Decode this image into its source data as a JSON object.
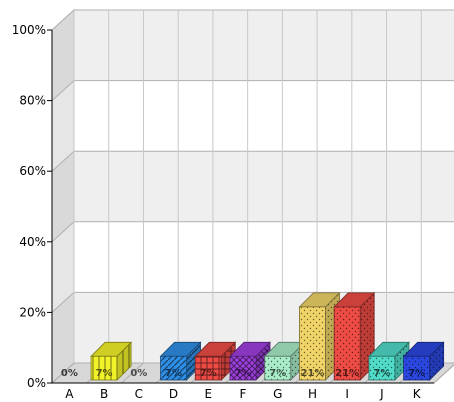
{
  "chart_data": {
    "type": "bar",
    "categories": [
      "A",
      "B",
      "C",
      "D",
      "E",
      "F",
      "G",
      "H",
      "I",
      "J",
      "K"
    ],
    "values": [
      0,
      7,
      0,
      7,
      7,
      7,
      7,
      21,
      21,
      7,
      7
    ],
    "value_labels": [
      "0%",
      "7%",
      "0%",
      "7%",
      "7%",
      "7%",
      "7%",
      "21%",
      "21%",
      "7%",
      "7%"
    ],
    "y_ticks": [
      "0%",
      "20%",
      "40%",
      "60%",
      "80%",
      "100%"
    ],
    "ylim": [
      0,
      100
    ],
    "y_unit": "%",
    "grid": true,
    "style": "3d",
    "colors": [
      "#9aa0a6",
      "#f2f22a",
      "#cfcfcf",
      "#2f8fe6",
      "#ee4b45",
      "#a040e0",
      "#a8ecc8",
      "#f0d468",
      "#ee4b45",
      "#50dcc8",
      "#2a48e0"
    ],
    "patterns": [
      "dots",
      "vlines",
      "dots",
      "diag",
      "grid",
      "crosshatch",
      "dots",
      "dots",
      "dots",
      "dots",
      "dots"
    ]
  }
}
